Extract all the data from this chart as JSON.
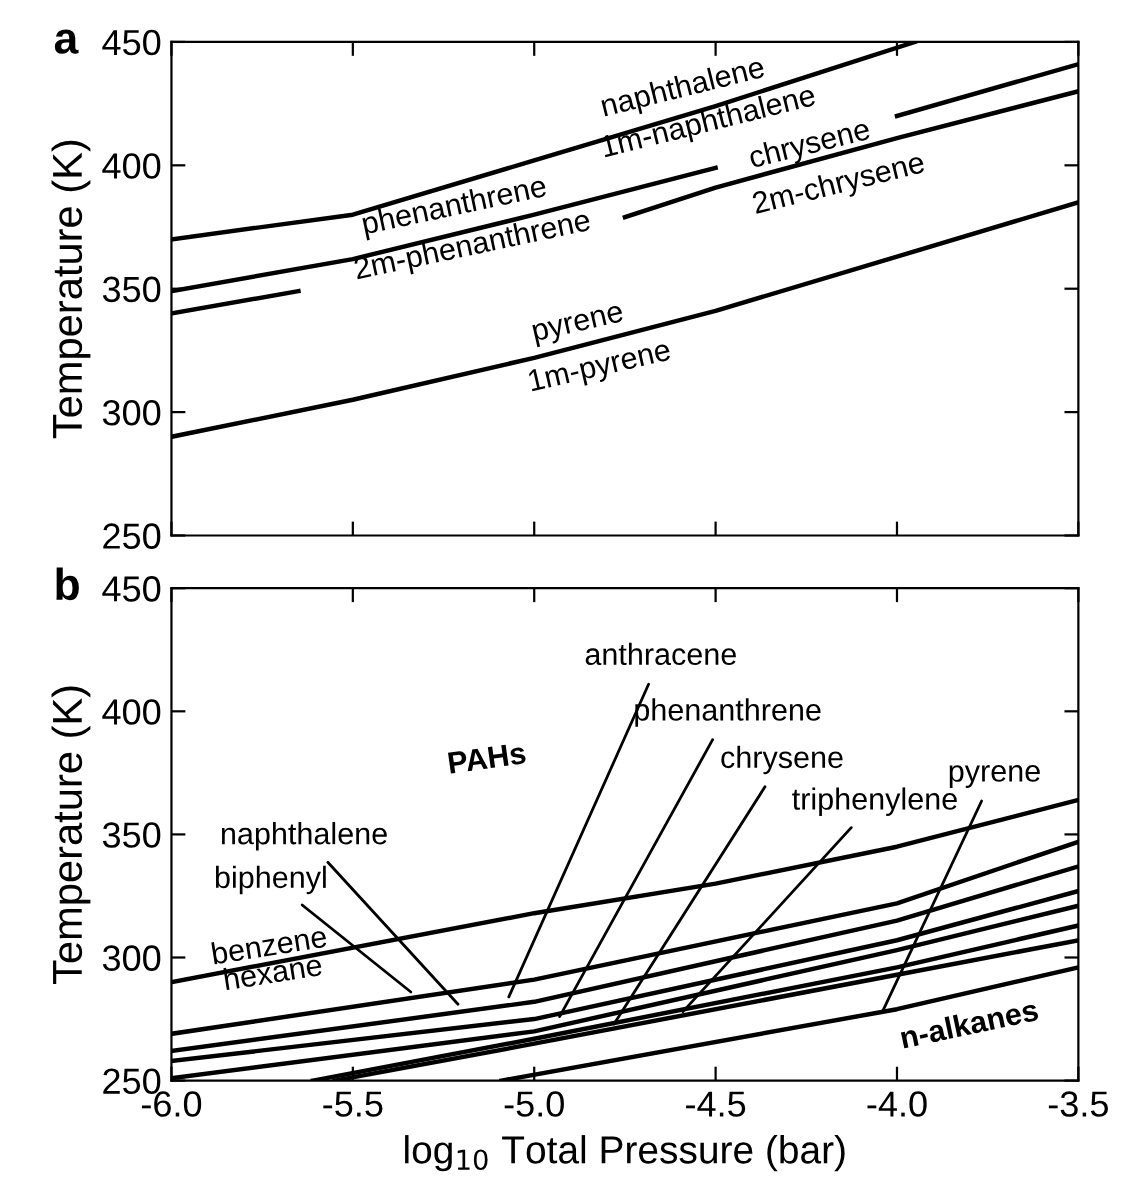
{
  "chart_data": [
    {
      "type": "line",
      "title": "a",
      "ylabel": "Temperature (K)",
      "xlim": [
        -6.0,
        -3.5
      ],
      "ylim": [
        250,
        450
      ],
      "xticks": [
        {
          "value": -6.0,
          "label": null
        },
        {
          "value": -5.5,
          "label": null
        },
        {
          "value": -5.0,
          "label": null
        },
        {
          "value": -4.5,
          "label": null
        },
        {
          "value": -4.0,
          "label": null
        },
        {
          "value": -3.5,
          "label": null
        }
      ],
      "yticks": [
        250,
        300,
        350,
        400,
        450
      ],
      "tick_labels": "y",
      "grid": false,
      "legend": false,
      "marker": "none",
      "line_style": "solid",
      "series": [
        {
          "color": "#000000",
          "x": [
            -6.0,
            -5.5,
            -5.0,
            -4.5,
            -3.95
          ],
          "values": [
            370,
            380,
            402,
            424,
            450
          ]
        },
        {
          "color": "#000000",
          "x": [
            -6.0,
            -5.5,
            -5.0,
            -4.5,
            -4.25,
            -4.0,
            -3.5
          ],
          "values": [
            349,
            362,
            380,
            399,
            null,
            420,
            441
          ]
        },
        {
          "color": "#000000",
          "x": [
            -6.0,
            -5.65,
            -5.2,
            -4.75,
            -4.5,
            -4.0,
            -3.5
          ],
          "values": [
            340,
            349,
            null,
            379,
            391,
            411,
            430
          ]
        },
        {
          "color": "#000000",
          "x": [
            -6.0,
            -5.5,
            -5.0,
            -4.5,
            -4.0,
            -3.5
          ],
          "values": [
            290,
            305,
            322,
            341,
            363,
            385
          ]
        }
      ],
      "annotations": [
        "naphthalene",
        "1m-naphthalene",
        "phenanthrene",
        "2m-phenanthrene",
        "chrysene",
        "2m-chrysene",
        "pyrene",
        "1m-pyrene"
      ]
    },
    {
      "type": "line",
      "title": "b",
      "xlabel": "log$_{10}$ Total Pressure (bar)",
      "ylabel": "Temperature (K)",
      "xlim": [
        -6.0,
        -3.5
      ],
      "ylim": [
        250,
        450
      ],
      "xticks": [
        {
          "value": -6.0,
          "label": "-6.0"
        },
        {
          "value": -5.5,
          "label": "-5.5"
        },
        {
          "value": -5.0,
          "label": "-5.0"
        },
        {
          "value": -4.5,
          "label": "-4.5"
        },
        {
          "value": -4.0,
          "label": "-4.0"
        },
        {
          "value": -3.5,
          "label": "-3.5"
        }
      ],
      "yticks": [
        250,
        300,
        350,
        400,
        450
      ],
      "grid": false,
      "legend": false,
      "marker": "none",
      "line_style": "solid",
      "series": [
        {
          "color": "#000000",
          "x": [
            -6.0,
            -5.0,
            -4.5,
            -4.0,
            -3.5
          ],
          "values": [
            290,
            318,
            330,
            345,
            364
          ]
        },
        {
          "color": "#000000",
          "x": [
            -6.0,
            -5.0,
            -4.0,
            -3.5
          ],
          "values": [
            269,
            291,
            322,
            347
          ]
        },
        {
          "color": "#000000",
          "x": [
            -6.0,
            -5.0,
            -4.0,
            -3.5
          ],
          "values": [
            262,
            282,
            315,
            337
          ]
        },
        {
          "color": "#000000",
          "x": [
            -6.0,
            -5.0,
            -4.0,
            -3.5
          ],
          "values": [
            258,
            275,
            307,
            327
          ]
        },
        {
          "color": "#000000",
          "x": [
            -6.0,
            -5.0,
            -4.0,
            -3.5
          ],
          "values": [
            251,
            270,
            303,
            321
          ]
        },
        {
          "color": "#000000",
          "x": [
            -5.61,
            -5.0,
            -4.0,
            -3.5
          ],
          "values": [
            250,
            267,
            296,
            313
          ]
        },
        {
          "color": "#000000",
          "x": [
            -5.55,
            -5.0,
            -4.0,
            -3.5
          ],
          "values": [
            250,
            265,
            293,
            307
          ]
        },
        {
          "color": "#000000",
          "x": [
            -5.09,
            -4.0,
            -3.5
          ],
          "values": [
            250,
            279,
            296
          ]
        }
      ],
      "annotations": [
        {
          "text": "anthracene",
          "x": -5.07,
          "y": 284
        },
        {
          "text": "phenanthrene",
          "x": -4.93,
          "y": 276
        },
        "PAHs",
        {
          "text": "chrysene",
          "x": -4.78,
          "y": 273
        },
        {
          "text": "triphenylene",
          "x": -4.59,
          "y": 278
        },
        {
          "text": "pyrene",
          "x": -4.04,
          "y": 278
        },
        {
          "text": "naphthalene",
          "x": -5.21,
          "y": 281
        },
        {
          "text": "biphenyl",
          "x": -5.34,
          "y": 286
        },
        "benzene",
        "hexane",
        "n-alkanes"
      ]
    }
  ]
}
